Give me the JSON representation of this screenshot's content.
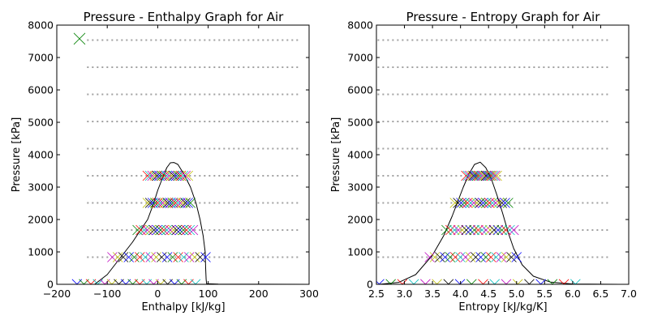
{
  "chart_data": [
    {
      "type": "scatter",
      "title": "Pressure - Enthalpy Graph for Air",
      "xlabel": "Enthalpy [kJ/kg]",
      "ylabel": "Pressure [kPa]",
      "xlim": [
        -200,
        300
      ],
      "ylim": [
        0,
        8000
      ],
      "xticks": [
        "−200",
        "−100",
        "0",
        "100",
        "200",
        "300"
      ],
      "yticks": [
        "0",
        "1000",
        "2000",
        "3000",
        "4000",
        "5000",
        "6000",
        "7000",
        "8000"
      ],
      "isobar_pressures": [
        838,
        1675,
        2513,
        3350,
        4188,
        5025,
        5863,
        6700,
        7538
      ],
      "isobar_x_range": [
        -140,
        280
      ],
      "dome": {
        "left": [
          [
            -125,
            0
          ],
          [
            -100,
            300
          ],
          [
            -85,
            600
          ],
          [
            -70,
            900
          ],
          [
            -50,
            1300
          ],
          [
            -35,
            1650
          ],
          [
            -20,
            2000
          ],
          [
            -8,
            2500
          ],
          [
            0,
            2900
          ],
          [
            10,
            3300
          ],
          [
            18,
            3600
          ],
          [
            25,
            3750
          ]
        ],
        "right": [
          [
            25,
            3750
          ],
          [
            32,
            3760
          ],
          [
            40,
            3700
          ],
          [
            52,
            3400
          ],
          [
            65,
            3000
          ],
          [
            76,
            2500
          ],
          [
            84,
            2000
          ],
          [
            90,
            1500
          ],
          [
            94,
            1000
          ],
          [
            95,
            500
          ],
          [
            96,
            150
          ],
          [
            97,
            20
          ],
          [
            120,
            5
          ],
          [
            300,
            0
          ]
        ]
      },
      "markers": {
        "y_levels": [
          5,
          838,
          1675,
          2513,
          3350
        ],
        "x_ranges": [
          [
            -160,
            75
          ],
          [
            -90,
            95
          ],
          [
            -40,
            70
          ],
          [
            -20,
            65
          ],
          [
            -20,
            60
          ]
        ],
        "count_per_level": 18,
        "outlier": {
          "x": -155,
          "y": 7580
        }
      }
    },
    {
      "type": "scatter",
      "title": "Pressure - Entropy Graph for Air",
      "xlabel": "Entropy [kJ/kg/K]",
      "ylabel": "Pressure [kPa]",
      "xlim": [
        2.5,
        7.0
      ],
      "ylim": [
        0,
        8000
      ],
      "xticks": [
        "2.5",
        "3.0",
        "3.5",
        "4.0",
        "4.5",
        "5.0",
        "5.5",
        "6.0",
        "6.5",
        "7.0"
      ],
      "yticks": [
        "0",
        "1000",
        "2000",
        "3000",
        "4000",
        "5000",
        "6000",
        "7000",
        "8000"
      ],
      "isobar_pressures": [
        838,
        1675,
        2513,
        3350,
        4188,
        5025,
        5863,
        6700,
        7538
      ],
      "isobar_x_range": [
        2.52,
        6.65
      ],
      "dome": {
        "left": [
          [
            2.55,
            0
          ],
          [
            2.9,
            60
          ],
          [
            3.2,
            300
          ],
          [
            3.5,
            900
          ],
          [
            3.7,
            1500
          ],
          [
            3.85,
            2100
          ],
          [
            3.95,
            2550
          ],
          [
            4.05,
            3000
          ],
          [
            4.15,
            3400
          ],
          [
            4.25,
            3700
          ],
          [
            4.35,
            3770
          ]
        ],
        "right": [
          [
            4.35,
            3770
          ],
          [
            4.45,
            3600
          ],
          [
            4.55,
            3250
          ],
          [
            4.65,
            2750
          ],
          [
            4.75,
            2200
          ],
          [
            4.85,
            1600
          ],
          [
            4.95,
            1100
          ],
          [
            5.1,
            600
          ],
          [
            5.3,
            250
          ],
          [
            5.6,
            70
          ],
          [
            6.0,
            10
          ],
          [
            6.9,
            0
          ]
        ]
      },
      "markers": {
        "y_levels": [
          5,
          838,
          1675,
          2513,
          3350
        ],
        "x_ranges": [
          [
            2.55,
            6.05
          ],
          [
            3.45,
            5.0
          ],
          [
            3.75,
            4.95
          ],
          [
            3.9,
            4.85
          ],
          [
            4.1,
            4.65
          ]
        ],
        "count_per_level": 18
      }
    }
  ]
}
